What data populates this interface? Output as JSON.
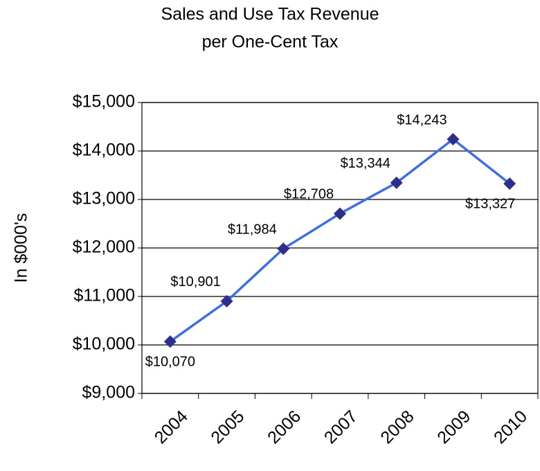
{
  "chart_data": {
    "type": "line",
    "title": [
      "Sales and Use Tax Revenue",
      "per One-Cent Tax"
    ],
    "y_label": "In $000's",
    "categories": [
      "2004",
      "2005",
      "2006",
      "2007",
      "2008",
      "2009",
      "2010"
    ],
    "values": [
      10070,
      10901,
      11984,
      12708,
      13344,
      14243,
      13327
    ],
    "value_labels": [
      "$10,070",
      "$10,901",
      "$11,984",
      "$12,708",
      "$13,344",
      "$14,243",
      "$13,327"
    ],
    "color": "#3b6fe6",
    "marker_color": "#2e2e8c",
    "ylim": [
      9000,
      15000
    ],
    "yticks": [
      {
        "value": 9000,
        "label": "$9,000"
      },
      {
        "value": 10000,
        "label": "$10,000"
      },
      {
        "value": 11000,
        "label": "$11,000"
      },
      {
        "value": 12000,
        "label": "$12,000"
      },
      {
        "value": 13000,
        "label": "$13,000"
      },
      {
        "value": 14000,
        "label": "$14,000"
      },
      {
        "value": 15000,
        "label": "$15,000"
      }
    ],
    "grid": true
  }
}
